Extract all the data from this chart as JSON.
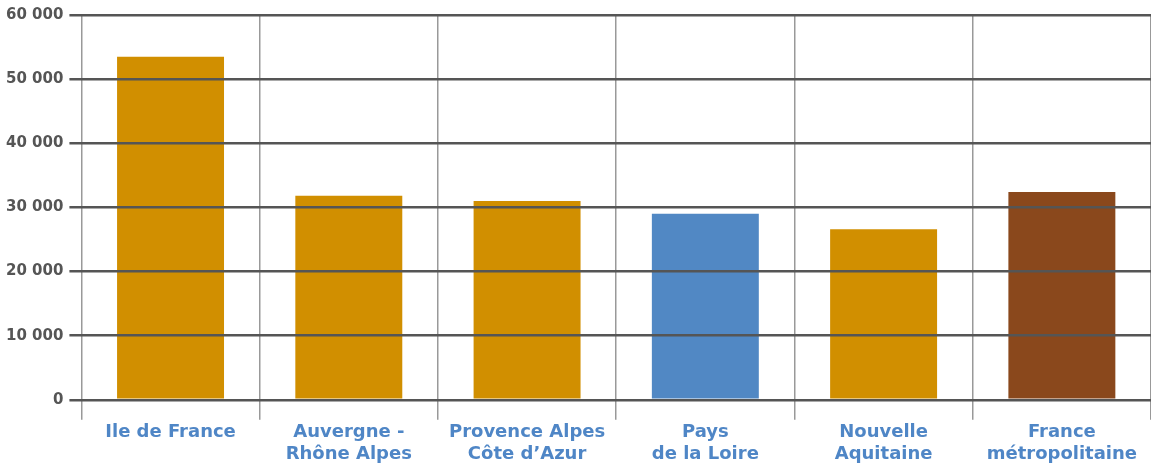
{
  "chart_data": {
    "type": "bar",
    "categories": [
      "Ile de France",
      "Auvergne -\nRhône Alpes",
      "Provence Alpes\nCôte d’Azur",
      "Pays\nde la Loire",
      "Nouvelle\nAquitaine",
      "France\nmétropolitaine"
    ],
    "values": [
      53500,
      31800,
      31000,
      29000,
      26600,
      32400
    ],
    "colors": [
      "#d18f00",
      "#d18f00",
      "#d18f00",
      "#5188c4",
      "#d18f00",
      "#8a481c"
    ],
    "ylim": [
      0,
      60000
    ],
    "yticks": [
      {
        "value": 0,
        "label": "0"
      },
      {
        "value": 10000,
        "label": "10 000"
      },
      {
        "value": 20000,
        "label": "20 000"
      },
      {
        "value": 30000,
        "label": "30 000"
      },
      {
        "value": 40000,
        "label": "40 000"
      },
      {
        "value": 50000,
        "label": "50 000"
      },
      {
        "value": 60000,
        "label": "60 000"
      }
    ],
    "grid": true,
    "legend": false
  }
}
